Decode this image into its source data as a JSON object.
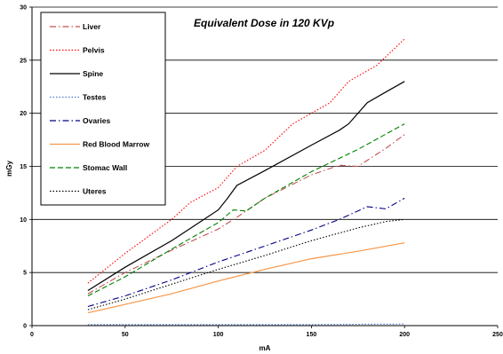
{
  "chart_data": {
    "type": "line",
    "title": "Equivalent Dose in 120 KVp",
    "xlabel": "mA",
    "ylabel": "mGy",
    "xlim": [
      0,
      250
    ],
    "ylim": [
      0,
      30
    ],
    "x_ticks": [
      "0",
      "50",
      "100",
      "150",
      "200",
      "250"
    ],
    "y_ticks": [
      "0",
      "5",
      "10",
      "15",
      "20",
      "25",
      "30"
    ],
    "grid": "horizontal major gridlines",
    "legend_position": "top-left",
    "series": [
      {
        "name": "Liver",
        "color": "#c0504d",
        "style": "dashdot",
        "points": [
          [
            30,
            3
          ],
          [
            50,
            5
          ],
          [
            75,
            7.1
          ],
          [
            100,
            9.1
          ],
          [
            110,
            10.2
          ],
          [
            125,
            12
          ],
          [
            150,
            14.2
          ],
          [
            165,
            15.1
          ],
          [
            175,
            15
          ],
          [
            190,
            16.7
          ],
          [
            200,
            18
          ]
        ]
      },
      {
        "name": "Pelvis",
        "color": "#ff0000",
        "style": "dotted",
        "points": [
          [
            30,
            4
          ],
          [
            50,
            6.8
          ],
          [
            75,
            10
          ],
          [
            85,
            11.6
          ],
          [
            100,
            13
          ],
          [
            110,
            15
          ],
          [
            125,
            16.5
          ],
          [
            140,
            19
          ],
          [
            150,
            20
          ],
          [
            160,
            21
          ],
          [
            170,
            23
          ],
          [
            185,
            24.5
          ],
          [
            200,
            27
          ]
        ]
      },
      {
        "name": "Spine",
        "color": "#000000",
        "style": "solid",
        "points": [
          [
            30,
            3.3
          ],
          [
            50,
            5.5
          ],
          [
            75,
            8
          ],
          [
            100,
            10.9
          ],
          [
            105,
            12
          ],
          [
            110,
            13.2
          ],
          [
            125,
            14.6
          ],
          [
            150,
            17
          ],
          [
            165,
            18.4
          ],
          [
            170,
            19
          ],
          [
            180,
            21
          ],
          [
            190,
            22
          ],
          [
            200,
            23
          ]
        ]
      },
      {
        "name": "Testes",
        "color": "#4a7bd4",
        "style": "dotted",
        "points": [
          [
            30,
            0.1
          ],
          [
            100,
            0.1
          ],
          [
            150,
            0.1
          ],
          [
            200,
            0.15
          ]
        ]
      },
      {
        "name": "Ovaries",
        "color": "#000080",
        "style": "dashdot",
        "points": [
          [
            30,
            1.8
          ],
          [
            50,
            2.8
          ],
          [
            75,
            4.3
          ],
          [
            100,
            6
          ],
          [
            125,
            7.5
          ],
          [
            150,
            9
          ],
          [
            165,
            10
          ],
          [
            180,
            11.2
          ],
          [
            190,
            11
          ],
          [
            200,
            12
          ]
        ]
      },
      {
        "name": "Red Blood Marrow",
        "color": "#f79646",
        "style": "solid",
        "points": [
          [
            30,
            1.2
          ],
          [
            50,
            2
          ],
          [
            75,
            3
          ],
          [
            100,
            4.2
          ],
          [
            125,
            5.3
          ],
          [
            150,
            6.3
          ],
          [
            175,
            7
          ],
          [
            200,
            7.8
          ]
        ]
      },
      {
        "name": "Stomac Wall",
        "color": "#008000",
        "style": "dashed",
        "points": [
          [
            30,
            2.8
          ],
          [
            50,
            4.6
          ],
          [
            75,
            7.2
          ],
          [
            100,
            9.7
          ],
          [
            108,
            10.9
          ],
          [
            115,
            10.8
          ],
          [
            125,
            12
          ],
          [
            150,
            14.5
          ],
          [
            175,
            16.6
          ],
          [
            200,
            19
          ]
        ]
      },
      {
        "name": "Uteres",
        "color": "#000000",
        "style": "dotted",
        "points": [
          [
            30,
            1.5
          ],
          [
            50,
            2.5
          ],
          [
            75,
            3.9
          ],
          [
            100,
            5.3
          ],
          [
            125,
            6.6
          ],
          [
            150,
            8
          ],
          [
            175,
            9.2
          ],
          [
            190,
            9.8
          ],
          [
            200,
            10
          ]
        ]
      }
    ]
  }
}
